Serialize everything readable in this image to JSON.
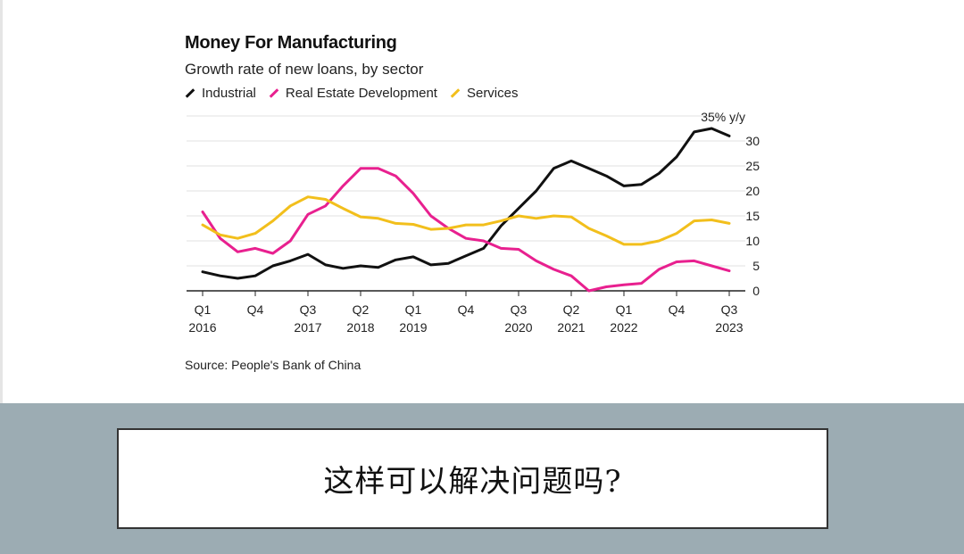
{
  "caption": "这样可以解决问题吗?",
  "chart_data": {
    "type": "line",
    "title": "Money For Manufacturing",
    "subtitle": "Growth rate of new loans, by sector",
    "unit_label": "35% y/y",
    "source": "Source: People's Bank of China",
    "ylim": [
      0,
      35
    ],
    "yticks": [
      0,
      5,
      10,
      15,
      20,
      25,
      30
    ],
    "x_range": [
      0,
      30
    ],
    "x_tick_labels": [
      {
        "i": 0,
        "line1": "Q1",
        "line2": "2016"
      },
      {
        "i": 3,
        "line1": "Q4",
        "line2": ""
      },
      {
        "i": 6,
        "line1": "Q3",
        "line2": "2017"
      },
      {
        "i": 9,
        "line1": "Q2",
        "line2": "2018"
      },
      {
        "i": 12,
        "line1": "Q1",
        "line2": "2019"
      },
      {
        "i": 15,
        "line1": "Q4",
        "line2": ""
      },
      {
        "i": 18,
        "line1": "Q3",
        "line2": "2020"
      },
      {
        "i": 21,
        "line1": "Q2",
        "line2": "2021"
      },
      {
        "i": 24,
        "line1": "Q1",
        "line2": "2022"
      },
      {
        "i": 27,
        "line1": "Q4",
        "line2": ""
      },
      {
        "i": 30,
        "line1": "Q3",
        "line2": "2023"
      }
    ],
    "grid": true,
    "legend_position": "top-left",
    "series": [
      {
        "name": "Industrial",
        "color": "#111111",
        "values": [
          3.8,
          3.0,
          2.5,
          3.0,
          5.0,
          6.0,
          7.3,
          5.2,
          4.5,
          5.0,
          4.7,
          6.2,
          6.8,
          5.2,
          5.5,
          7.0,
          8.5,
          13.0,
          16.5,
          20.0,
          24.5,
          26.0,
          24.5,
          23.0,
          21.0,
          21.3,
          23.5,
          26.8,
          31.8,
          32.5,
          31.0
        ]
      },
      {
        "name": "Real Estate Development",
        "color": "#e8208f",
        "values": [
          15.8,
          10.5,
          7.8,
          8.5,
          7.5,
          10.0,
          15.3,
          17.0,
          21.0,
          24.5,
          24.5,
          23.0,
          19.5,
          15.0,
          12.5,
          10.5,
          10.0,
          8.5,
          8.3,
          6.0,
          4.3,
          3.0,
          0.0,
          0.8,
          1.2,
          1.5,
          4.3,
          5.8,
          6.0,
          5.0,
          4.0
        ]
      },
      {
        "name": "Services",
        "color": "#f2bf1c",
        "values": [
          13.2,
          11.2,
          10.5,
          11.5,
          14.0,
          17.0,
          18.8,
          18.3,
          16.5,
          14.8,
          14.5,
          13.5,
          13.3,
          12.3,
          12.5,
          13.2,
          13.2,
          14.0,
          15.0,
          14.5,
          15.0,
          14.8,
          12.5,
          11.0,
          9.3,
          9.3,
          10.0,
          11.5,
          14.0,
          14.2,
          13.5
        ]
      }
    ]
  }
}
